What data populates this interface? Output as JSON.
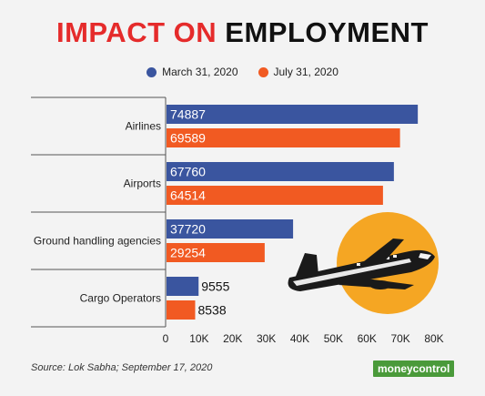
{
  "title": {
    "part1": "IMPACT ON",
    "part2": "EMPLOYMENT"
  },
  "legend": [
    {
      "label": "March 31, 2020",
      "color": "#3a559f"
    },
    {
      "label": "July 31, 2020",
      "color": "#f15a22"
    }
  ],
  "chart_data": {
    "type": "bar",
    "orientation": "horizontal",
    "title": "IMPACT ON EMPLOYMENT",
    "categories": [
      "Airlines",
      "Airports",
      "Ground handling agencies",
      "Cargo Operators"
    ],
    "series": [
      {
        "name": "March 31, 2020",
        "color": "#3a559f",
        "values": [
          74887,
          67760,
          37720,
          9555
        ]
      },
      {
        "name": "July 31, 2020",
        "color": "#f15a22",
        "values": [
          69589,
          64514,
          29254,
          8538
        ]
      }
    ],
    "xlim": [
      0,
      80000
    ],
    "xticks": [
      {
        "value": 0,
        "label": "0"
      },
      {
        "value": 10000,
        "label": "10K"
      },
      {
        "value": 20000,
        "label": "20K"
      },
      {
        "value": 30000,
        "label": "30K"
      },
      {
        "value": 40000,
        "label": "40K"
      },
      {
        "value": 50000,
        "label": "50K"
      },
      {
        "value": 60000,
        "label": "60K"
      },
      {
        "value": 70000,
        "label": "70K"
      },
      {
        "value": 80000,
        "label": "80K"
      }
    ],
    "legend_position": "top-center",
    "grid": false
  },
  "source": "Source: Lok Sabha; September 17, 2020",
  "logo": "moneycontrol",
  "colors": {
    "accent": "#e52b2b",
    "sun": "#f5a623",
    "plane": "#1a1a1a"
  },
  "illustration": "airplane-icon"
}
